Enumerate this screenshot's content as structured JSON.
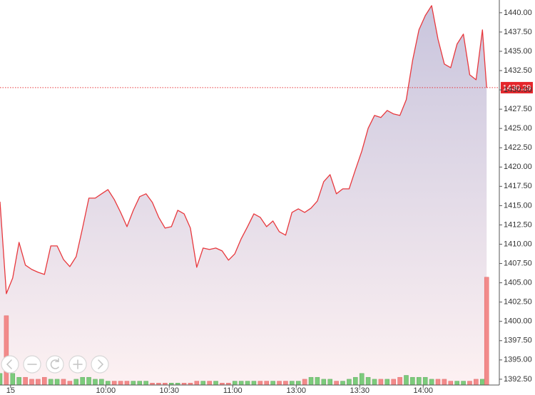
{
  "chart_data": {
    "type": "area",
    "x": [
      "09:10",
      "09:13",
      "09:16",
      "09:19",
      "09:22",
      "09:25",
      "09:28",
      "09:31",
      "09:34",
      "09:37",
      "09:40",
      "09:43",
      "09:46",
      "09:49",
      "09:52",
      "09:55",
      "09:58",
      "10:01",
      "10:04",
      "10:07",
      "10:10",
      "10:13",
      "10:16",
      "10:19",
      "10:22",
      "10:25",
      "10:28",
      "10:31",
      "10:34",
      "10:37",
      "10:40",
      "10:43",
      "10:46",
      "10:49",
      "10:52",
      "10:55",
      "10:58",
      "11:01",
      "11:04",
      "11:07",
      "11:10",
      "11:13",
      "11:16",
      "11:19",
      "11:22",
      "11:25",
      "11:28",
      "13:01",
      "13:04",
      "13:07",
      "13:10",
      "13:13",
      "13:16",
      "13:19",
      "13:22",
      "13:25",
      "13:28",
      "13:31",
      "13:34",
      "13:37",
      "13:40",
      "13:43",
      "13:46",
      "13:49",
      "13:52",
      "13:55",
      "13:58",
      "14:01",
      "14:04",
      "14:07",
      "14:10",
      "14:13",
      "14:16",
      "14:19",
      "14:22",
      "14:25",
      "14:28",
      "14:30"
    ],
    "values": [
      1415.51,
      1403.59,
      1405.62,
      1410.24,
      1407.29,
      1406.73,
      1406.36,
      1406.08,
      1409.78,
      1409.78,
      1408.02,
      1407.1,
      1408.39,
      1412.09,
      1415.97,
      1415.97,
      1416.53,
      1417.08,
      1415.79,
      1414.12,
      1412.27,
      1414.4,
      1416.16,
      1416.53,
      1415.42,
      1413.48,
      1412.09,
      1412.27,
      1414.4,
      1413.94,
      1412.09,
      1407.01,
      1409.5,
      1409.32,
      1409.5,
      1409.13,
      1407.93,
      1408.76,
      1410.7,
      1412.27,
      1413.94,
      1413.48,
      1412.27,
      1413.01,
      1411.63,
      1411.17,
      1414.12,
      1414.58,
      1414.12,
      1414.68,
      1415.6,
      1418.1,
      1419.02,
      1416.53,
      1417.17,
      1417.17,
      1419.67,
      1422.07,
      1425.03,
      1426.69,
      1426.42,
      1427.34,
      1426.88,
      1426.69,
      1428.72,
      1433.81,
      1437.78,
      1439.63,
      1440.92,
      1436.58,
      1433.35,
      1432.88,
      1435.93,
      1437.23,
      1431.96,
      1431.31,
      1437.78,
      1430.29
    ],
    "color": "#e8383d",
    "fill_top": "#c9c5dd",
    "fill_bottom": "#fdf1f2",
    "xlim": [
      "09:10",
      "14:36"
    ],
    "session_break": [
      "11:30",
      "13:00"
    ],
    "xticks": [
      {
        "value": "09:15",
        "label": "15"
      },
      "10:00",
      "10:30",
      "11:00",
      "13:00",
      "13:30",
      "14:00"
    ],
    "ylim": [
      1391.75,
      1441.65
    ],
    "yticks": [
      {
        "value": 1392.5,
        "label": "1392.50"
      },
      {
        "value": 1395,
        "label": "1395.00"
      },
      {
        "value": 1397.5,
        "label": "1397.50"
      },
      {
        "value": 1400,
        "label": "1400.00"
      },
      {
        "value": 1402.5,
        "label": "1402.50"
      },
      {
        "value": 1405,
        "label": "1405.00"
      },
      {
        "value": 1407.5,
        "label": "1407.50"
      },
      {
        "value": 1410,
        "label": "1410.00"
      },
      {
        "value": 1412.5,
        "label": "1412.50"
      },
      {
        "value": 1415,
        "label": "1415.00"
      },
      {
        "value": 1417.5,
        "label": "1417.50"
      },
      {
        "value": 1420,
        "label": "1420.00"
      },
      {
        "value": 1422.5,
        "label": "1422.50"
      },
      {
        "value": 1425,
        "label": "1425.00"
      },
      {
        "value": 1427.5,
        "label": "1427.50"
      },
      {
        "value": 1430,
        "label": "1430.00"
      },
      {
        "value": 1432.5,
        "label": "1432.50"
      },
      {
        "value": 1435,
        "label": "1435.00"
      },
      {
        "value": 1437.5,
        "label": "1437.50"
      },
      {
        "value": 1440,
        "label": "1440.00"
      }
    ],
    "grid": false,
    "volume": {
      "values": [
        3,
        18,
        3,
        2,
        2,
        1.5,
        1.5,
        2,
        1.5,
        1.5,
        1.5,
        1,
        1.5,
        2,
        2,
        1.5,
        1.5,
        1,
        1,
        1,
        1,
        1,
        1,
        1,
        0.5,
        0.5,
        0.5,
        0.5,
        0.5,
        0.5,
        0.5,
        1,
        1,
        1,
        1,
        0.5,
        0.5,
        1,
        1,
        1,
        1,
        1,
        1,
        1,
        1,
        1,
        1,
        1,
        1.5,
        2,
        2,
        1.5,
        1.5,
        1,
        1,
        1.5,
        2,
        3,
        2,
        1.5,
        1.5,
        1.5,
        1.5,
        2,
        2.5,
        2,
        2,
        2,
        1.5,
        1.5,
        1.5,
        1,
        1,
        1,
        1,
        1.5,
        1.5,
        28
      ],
      "ylim": [
        0,
        100
      ],
      "up_color": "#7ccb7c",
      "down_color": "#f28a8a"
    }
  }
}
